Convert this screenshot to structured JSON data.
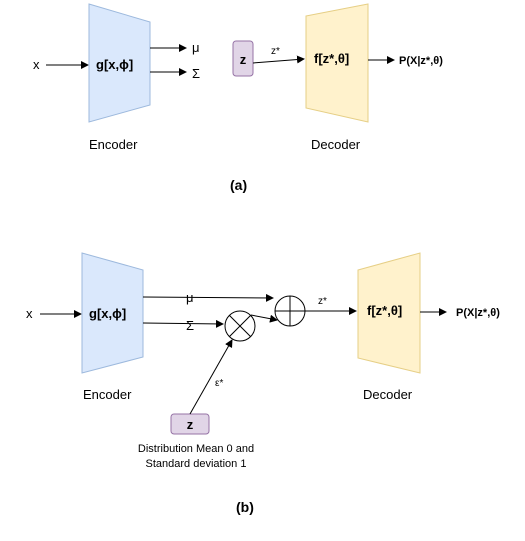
{
  "colors": {
    "encoder_fill": "#dae8fc",
    "encoder_stroke": "#9db9dd",
    "decoder_fill": "#fff2cc",
    "decoder_stroke": "#e6cf86",
    "z_fill": "#e1d5e7",
    "z_stroke": "#9673a6",
    "line": "#000000"
  },
  "diagram_a": {
    "input": "x",
    "encoder_func": "g[x,ϕ]",
    "mu": "μ",
    "sigma": "Σ",
    "z": "z",
    "z_star": "z*",
    "decoder_func": "f[z*,θ]",
    "output": "P(X|z*,θ)",
    "encoder_caption": "Encoder",
    "decoder_caption": "Decoder",
    "panel_label": "(a)"
  },
  "diagram_b": {
    "input": "x",
    "encoder_func": "g[x,ϕ]",
    "mu": "μ",
    "sigma": "Σ",
    "epsilon": "ε*",
    "z": "z",
    "z_star": "z*",
    "decoder_func": "f[z*,θ]",
    "output": "P(X|z*,θ)",
    "encoder_caption": "Encoder",
    "decoder_caption": "Decoder",
    "distribution_line1": "Distribution Mean 0 and",
    "distribution_line2": "Standard deviation 1",
    "panel_label": "(b)"
  }
}
